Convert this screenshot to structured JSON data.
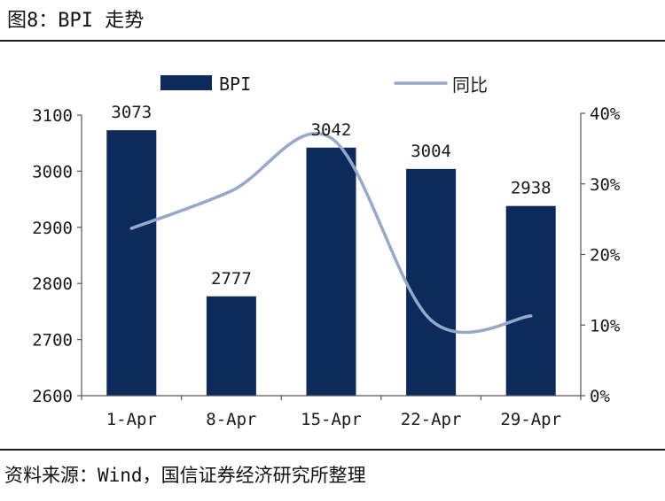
{
  "title": "图8：BPI 走势",
  "source": "资料来源：Wind，国信证券经济研究所整理",
  "chart_data": {
    "type": "bar",
    "categories": [
      "1-Apr",
      "8-Apr",
      "15-Apr",
      "22-Apr",
      "29-Apr"
    ],
    "series": [
      {
        "name": "BPI",
        "type": "bar",
        "axis": "left",
        "color": "#0d2a5c",
        "values": [
          3073,
          2777,
          3042,
          3004,
          2938
        ],
        "data_labels": [
          "3073",
          "2777",
          "3042",
          "3004",
          "2938"
        ]
      },
      {
        "name": "同比",
        "type": "line",
        "axis": "right",
        "color": "#96a9c7",
        "values": [
          0.237,
          0.29,
          0.365,
          0.107,
          0.113
        ]
      }
    ],
    "left_axis": {
      "min": 2600,
      "max": 3100,
      "ticks": [
        "2600",
        "2700",
        "2800",
        "2900",
        "3000",
        "3100"
      ]
    },
    "right_axis": {
      "min": 0,
      "max": 0.4,
      "ticks": [
        "0%",
        "10%",
        "20%",
        "30%",
        "40%"
      ]
    },
    "legend": "top",
    "grid": false
  }
}
